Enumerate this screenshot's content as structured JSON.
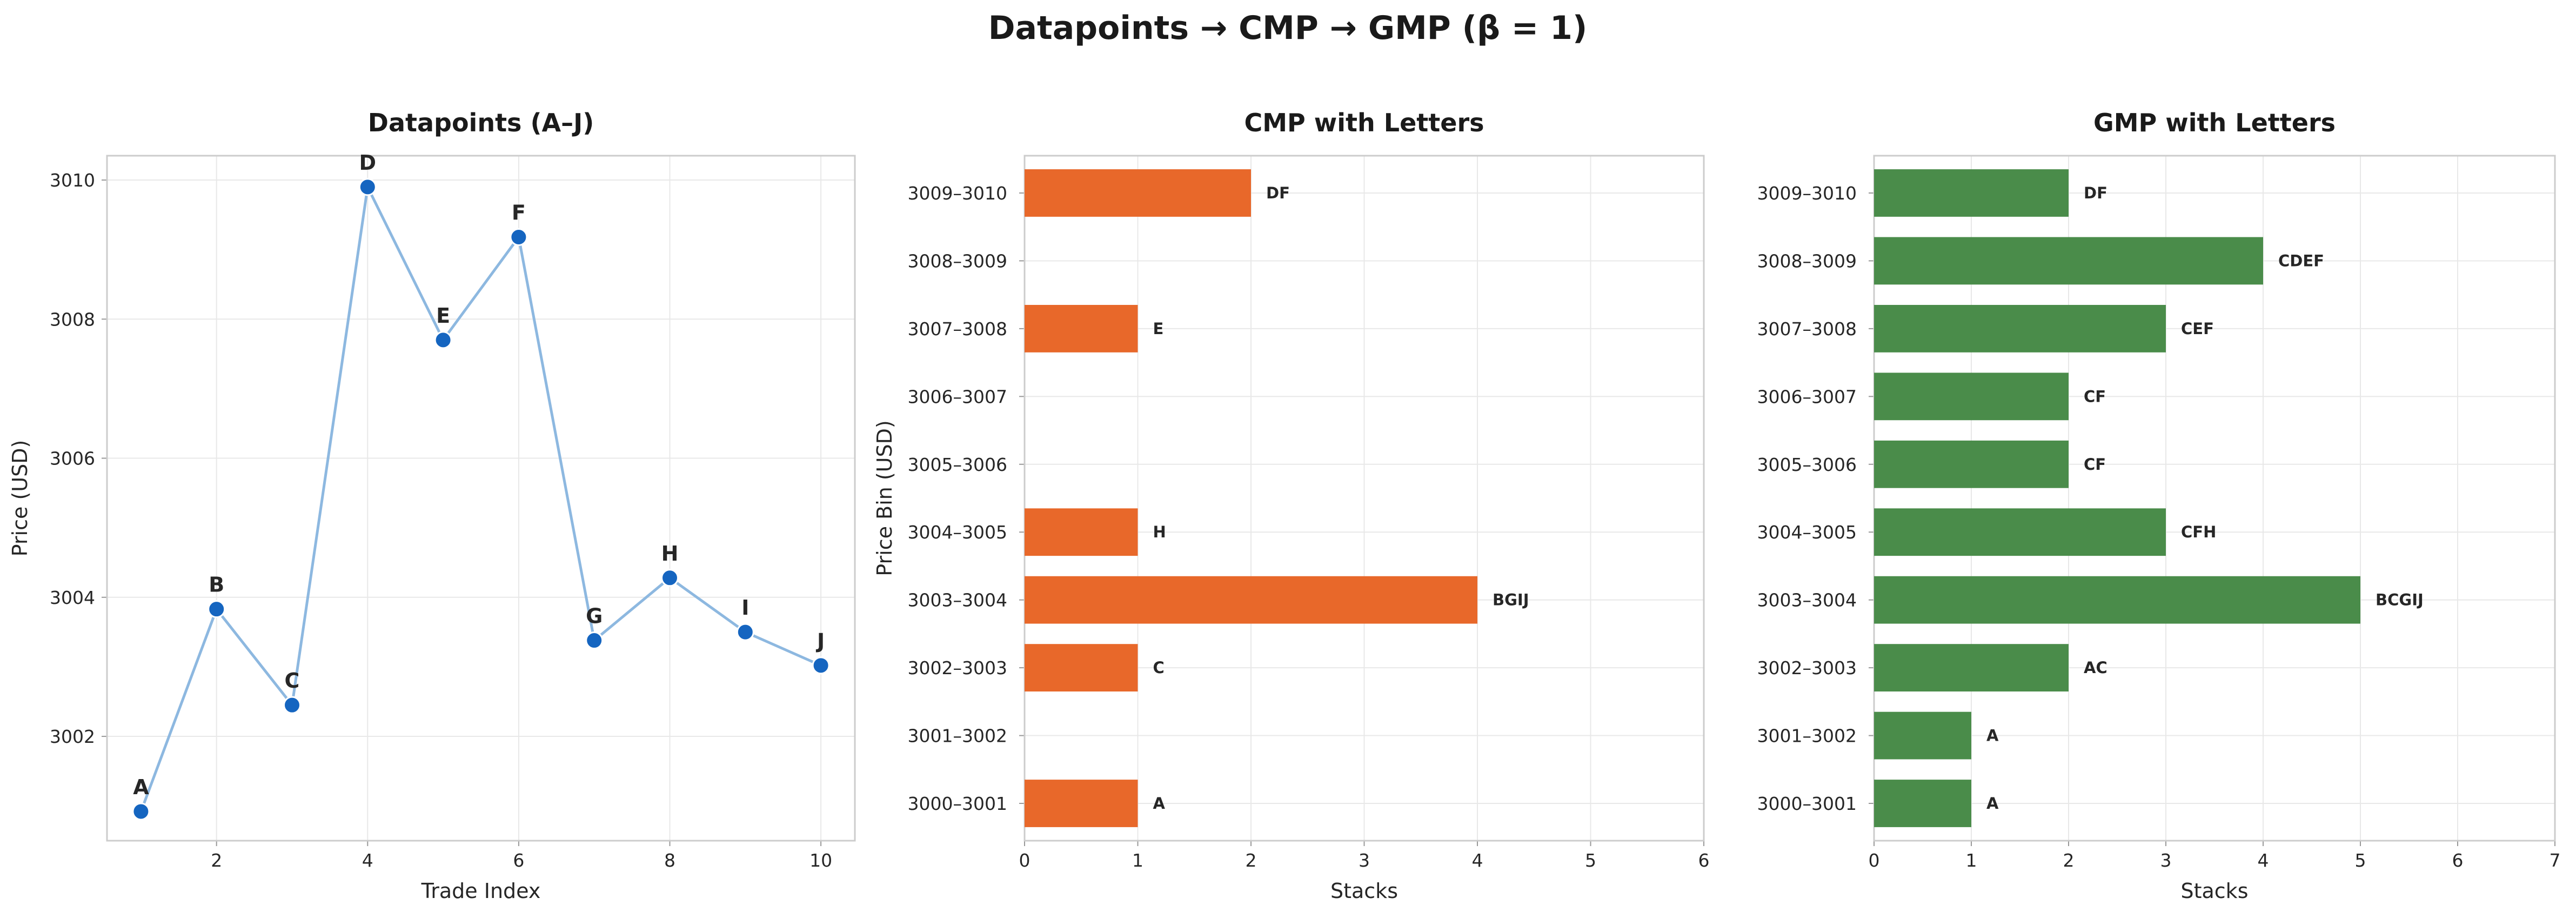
{
  "figure": {
    "suptitle": "Datapoints → CMP → GMP  (β = 1)"
  },
  "chart_data": [
    {
      "type": "line",
      "title": "Datapoints (A–J)",
      "xlabel": "Trade Index",
      "ylabel": "Price (USD)",
      "xlim": [
        0.55,
        10.45
      ],
      "ylim": [
        3000.5,
        3010.35
      ],
      "xticks": [
        2,
        4,
        6,
        8,
        10
      ],
      "yticks": [
        3002,
        3004,
        3006,
        3008,
        3010
      ],
      "line_color": "#8db8e0",
      "marker_color": "#1565c0",
      "grid": true,
      "points": [
        {
          "label": "A",
          "x": 1,
          "y": 3000.92
        },
        {
          "label": "B",
          "x": 2,
          "y": 3003.83
        },
        {
          "label": "C",
          "x": 3,
          "y": 3002.45
        },
        {
          "label": "D",
          "x": 4,
          "y": 3009.9
        },
        {
          "label": "E",
          "x": 5,
          "y": 3007.7
        },
        {
          "label": "F",
          "x": 6,
          "y": 3009.18
        },
        {
          "label": "G",
          "x": 7,
          "y": 3003.38
        },
        {
          "label": "H",
          "x": 8,
          "y": 3004.28
        },
        {
          "label": "I",
          "x": 9,
          "y": 3003.5
        },
        {
          "label": "J",
          "x": 10,
          "y": 3003.02
        }
      ]
    },
    {
      "type": "bar",
      "orientation": "horizontal",
      "title": "CMP with Letters",
      "xlabel": "Stacks",
      "ylabel": "Price Bin (USD)",
      "xlim": [
        0,
        6
      ],
      "xticks": [
        0,
        1,
        2,
        3,
        4,
        5,
        6
      ],
      "color": "#e8682a",
      "grid": true,
      "categories": [
        "3000–3001",
        "3001–3002",
        "3002–3003",
        "3003–3004",
        "3004–3005",
        "3005–3006",
        "3006–3007",
        "3007–3008",
        "3008–3009",
        "3009–3010"
      ],
      "values": [
        1,
        0,
        1,
        4,
        1,
        0,
        0,
        1,
        0,
        2
      ],
      "bar_labels": [
        "A",
        "",
        "C",
        "BGIJ",
        "H",
        "",
        "",
        "E",
        "",
        "DF"
      ]
    },
    {
      "type": "bar",
      "orientation": "horizontal",
      "title": "GMP with Letters",
      "xlabel": "Stacks",
      "ylabel": "",
      "xlim": [
        0,
        7
      ],
      "xticks": [
        0,
        1,
        2,
        3,
        4,
        5,
        6,
        7
      ],
      "color": "#4a8c4a",
      "grid": true,
      "categories": [
        "3000–3001",
        "3001–3002",
        "3002–3003",
        "3003–3004",
        "3004–3005",
        "3005–3006",
        "3006–3007",
        "3007–3008",
        "3008–3009",
        "3009–3010"
      ],
      "values": [
        1,
        1,
        2,
        5,
        3,
        2,
        2,
        3,
        4,
        2
      ],
      "bar_labels": [
        "A",
        "A",
        "AC",
        "BCGIJ",
        "CFH",
        "CF",
        "CF",
        "CEF",
        "CDEF",
        "DF"
      ]
    }
  ]
}
